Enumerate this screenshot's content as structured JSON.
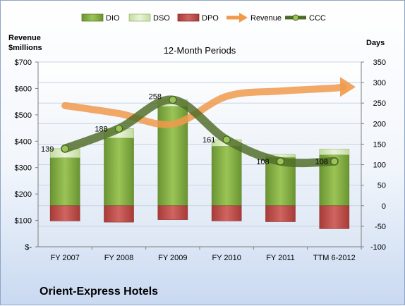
{
  "chart_data": {
    "type": "bar",
    "title": "12-Month Periods",
    "company": "Orient-Express Hotels",
    "categories": [
      "FY 2007",
      "FY 2008",
      "FY 2009",
      "FY 2010",
      "FY 2011",
      "TTM 6-2012"
    ],
    "y_left": {
      "label_line1": "Revenue",
      "label_line2": "$millions",
      "range": [
        0,
        700
      ],
      "ticks": [
        "$-",
        "$100",
        "$200",
        "$300",
        "$400",
        "$500",
        "$600",
        "$700"
      ]
    },
    "y_right": {
      "label": "Days",
      "range": [
        -100,
        350
      ],
      "ticks": [
        "-100",
        "-50",
        "0",
        "50",
        "100",
        "150",
        "200",
        "250",
        "300",
        "350"
      ]
    },
    "series": [
      {
        "name": "DIO",
        "axis": "right",
        "kind": "stacked-bar",
        "values": [
          117,
          165,
          242,
          145,
          118,
          124
        ],
        "color": "#7fa83e"
      },
      {
        "name": "DSO",
        "axis": "right",
        "kind": "stacked-bar",
        "values": [
          22,
          23,
          16,
          16,
          7,
          14
        ],
        "color": "#d6e8b6"
      },
      {
        "name": "DPO",
        "axis": "right",
        "kind": "negative-bar",
        "values": [
          -37,
          -40,
          -34,
          -37,
          -39,
          -56
        ],
        "color": "#c0504d"
      },
      {
        "name": "Revenue",
        "axis": "left",
        "kind": "arrow-line",
        "values": [
          535,
          505,
          465,
          570,
          590,
          595
        ],
        "color": "#f09a4c"
      },
      {
        "name": "CCC",
        "axis": "right",
        "kind": "line-markers",
        "values": [
          139,
          188,
          258,
          161,
          108,
          108
        ],
        "color": "#4e6b25"
      }
    ],
    "ccc_labels": [
      "139",
      "188",
      "258",
      "161",
      "108",
      "108"
    ],
    "grid": true,
    "legend": "top"
  }
}
